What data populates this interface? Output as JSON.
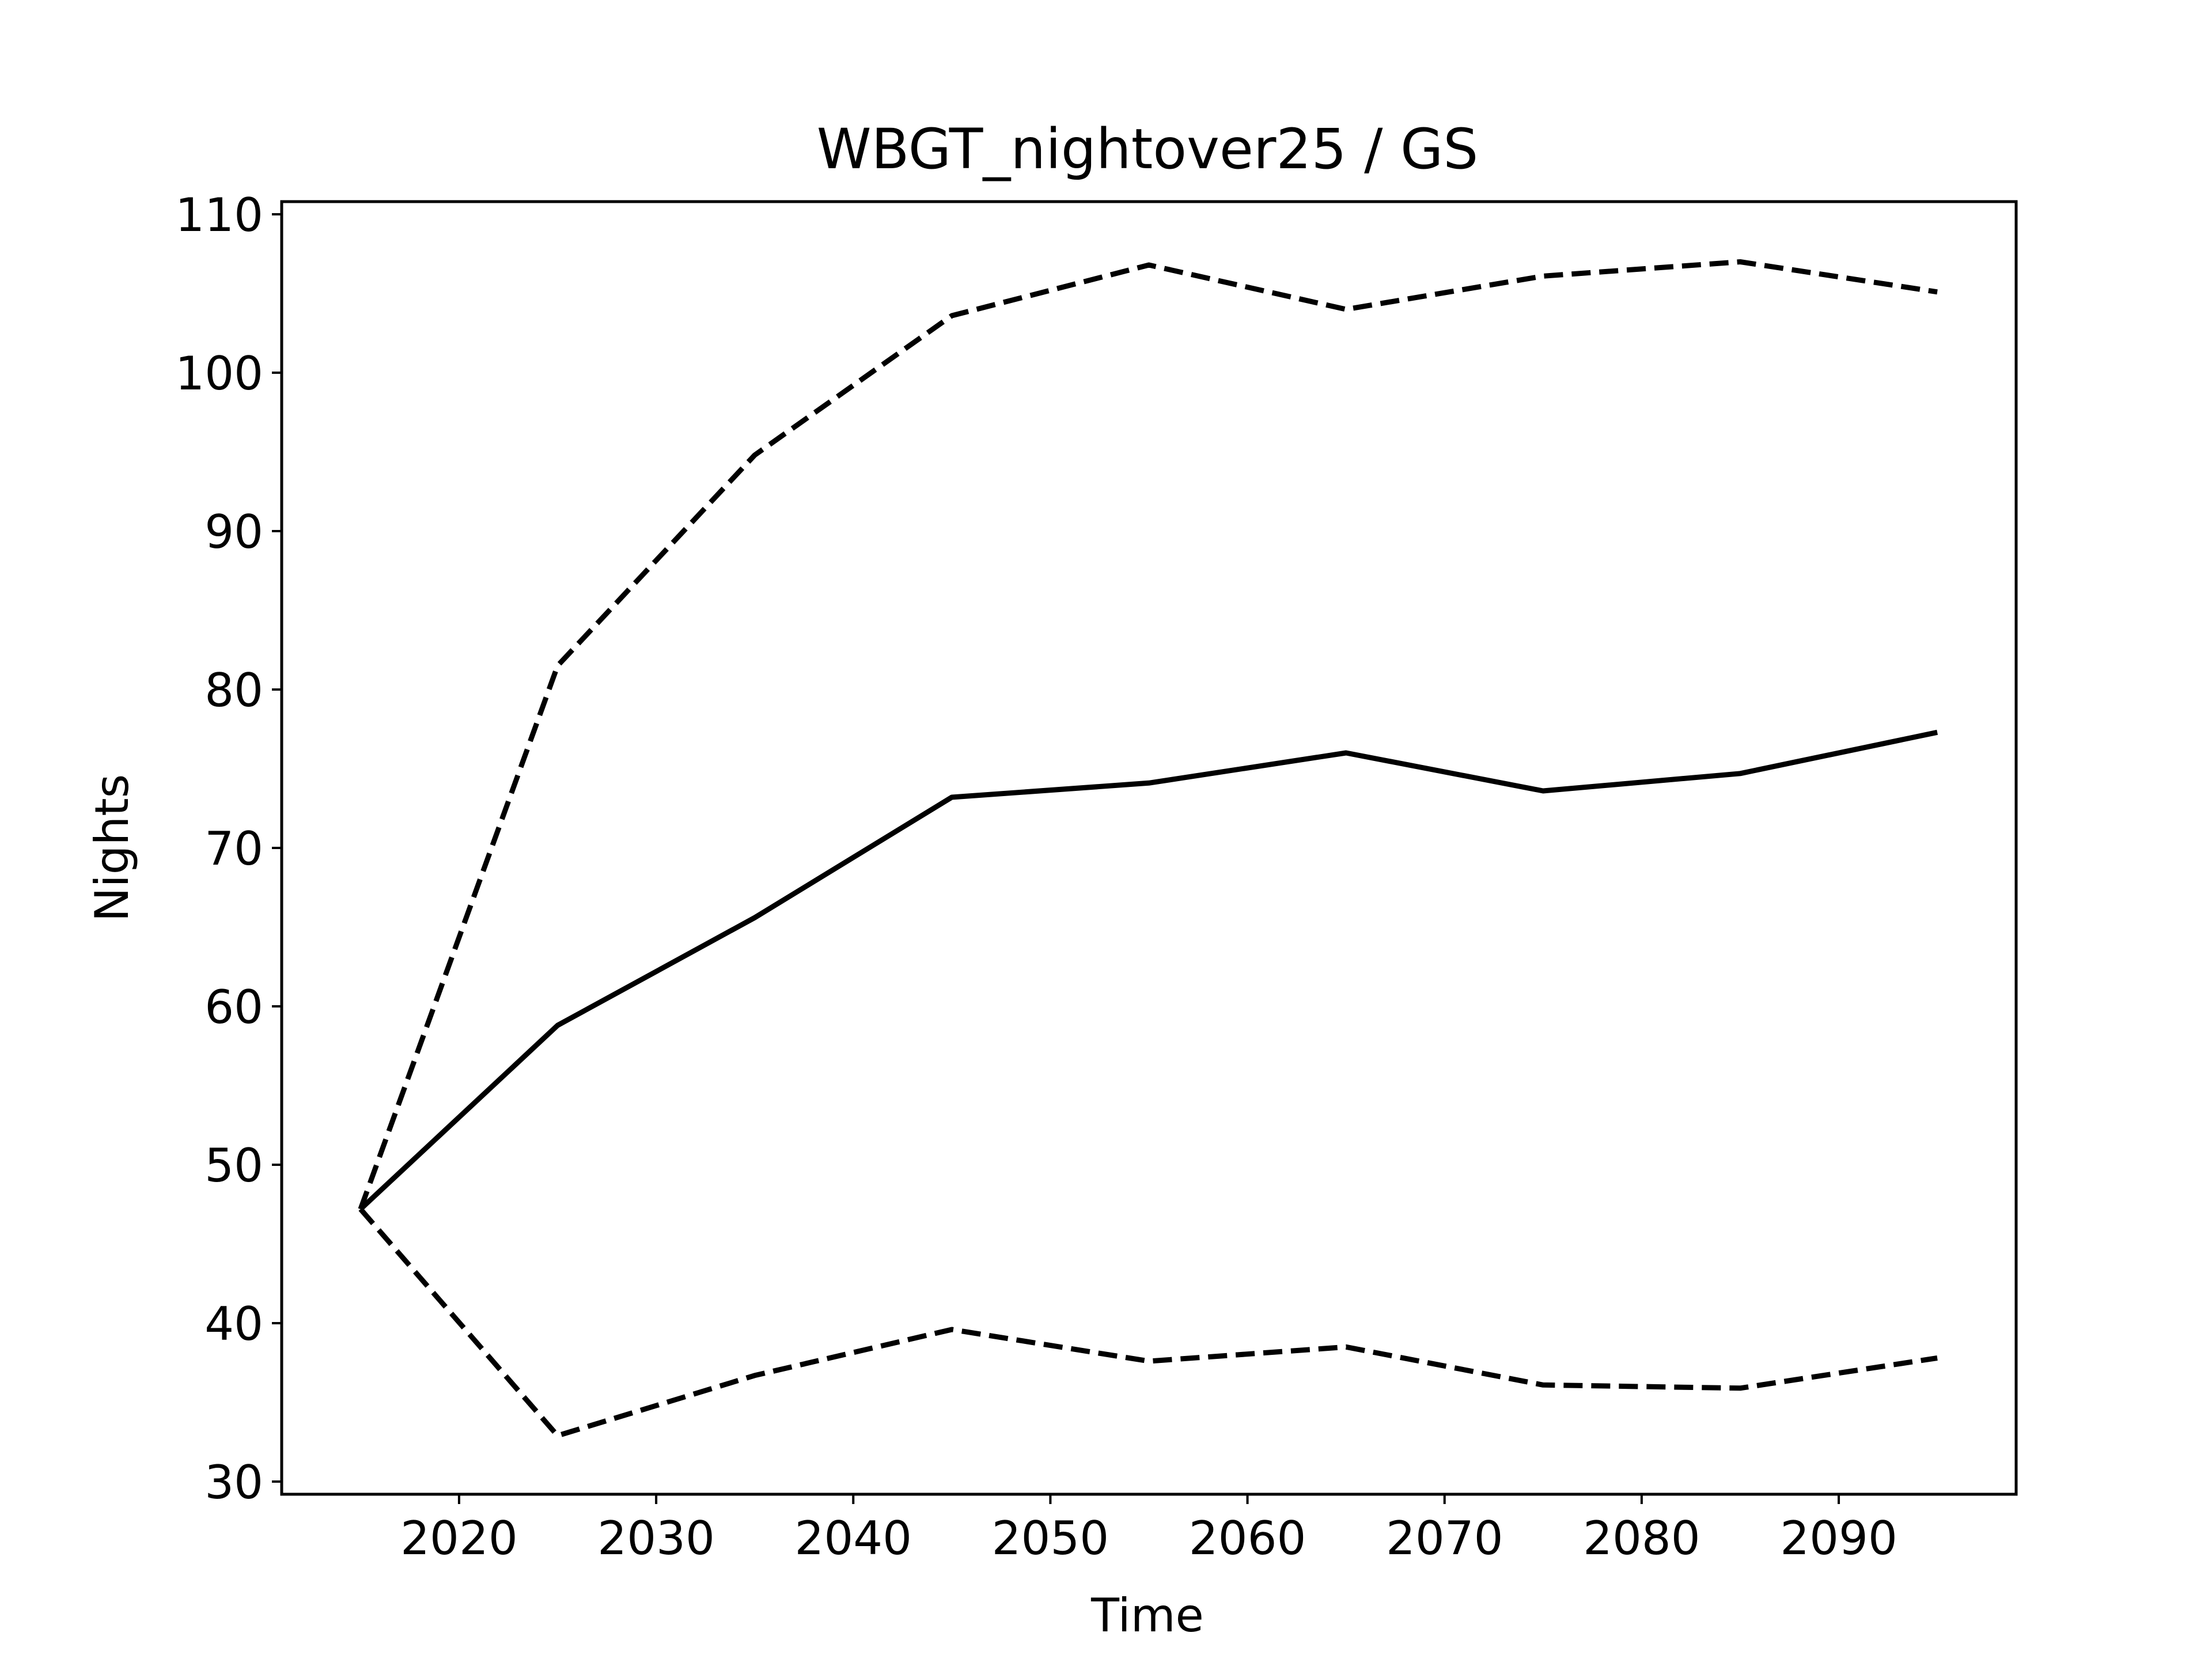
{
  "chart_data": {
    "type": "line",
    "title": "WBGT_nightover25 / GS",
    "xlabel": "Time",
    "ylabel": "Nights",
    "xlim": [
      2011,
      2099
    ],
    "ylim": [
      29.2,
      110.8
    ],
    "xticks": [
      2020,
      2030,
      2040,
      2050,
      2060,
      2070,
      2080,
      2090
    ],
    "yticks": [
      30,
      40,
      50,
      60,
      70,
      80,
      90,
      100,
      110
    ],
    "grid": false,
    "x": [
      2015,
      2025,
      2035,
      2045,
      2055,
      2065,
      2075,
      2085,
      2095
    ],
    "series": [
      {
        "style": "solid",
        "color": "#000000",
        "values": [
          47.2,
          58.8,
          65.6,
          73.2,
          74.1,
          76.0,
          73.6,
          74.7,
          77.3
        ]
      },
      {
        "style": "dashed",
        "color": "#000000",
        "values": [
          47.2,
          81.5,
          94.8,
          103.6,
          106.8,
          104.0,
          106.1,
          107.0,
          105.1
        ]
      },
      {
        "style": "dashed",
        "color": "#000000",
        "values": [
          47.2,
          32.9,
          36.7,
          39.6,
          37.6,
          38.5,
          36.1,
          35.9,
          37.8
        ]
      }
    ]
  }
}
